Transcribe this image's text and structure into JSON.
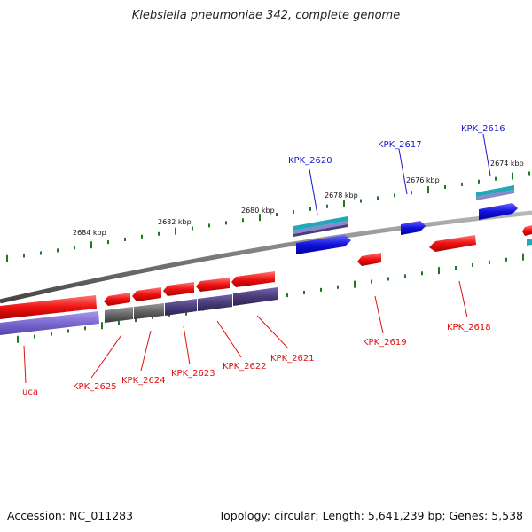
{
  "title": "Klebsiella pneumoniae 342, complete genome",
  "footer": {
    "accession": "Accession: NC_011283",
    "summary": "Topology: circular; Length: 5,641,239 bp; Genes: 5,538"
  },
  "colors": {
    "forward_gene_label": "#1a1acc",
    "reverse_gene_label": "#dd1111",
    "tick": "#1f7a1f",
    "backbone": "#7a7a7a",
    "cds_red": "#ee1111",
    "cds_blue": "#1111dd",
    "protein_purple": "#4a3d7a",
    "protein_lilac": "#7b68d0",
    "protein_grey": "#666666",
    "teal": "#22a8b8"
  },
  "scale_labels": [
    "2684 kbp",
    "2682 kbp",
    "2680 kbp",
    "2678 kbp",
    "2676 kbp",
    "2674 kbp"
  ],
  "forward_genes": [
    "KPK_2620",
    "KPK_2617",
    "KPK_2616"
  ],
  "reverse_genes": [
    "uca",
    "KPK_2625",
    "KPK_2624",
    "KPK_2623",
    "KPK_2622",
    "KPK_2621",
    "KPK_2619",
    "KPK_2618"
  ]
}
